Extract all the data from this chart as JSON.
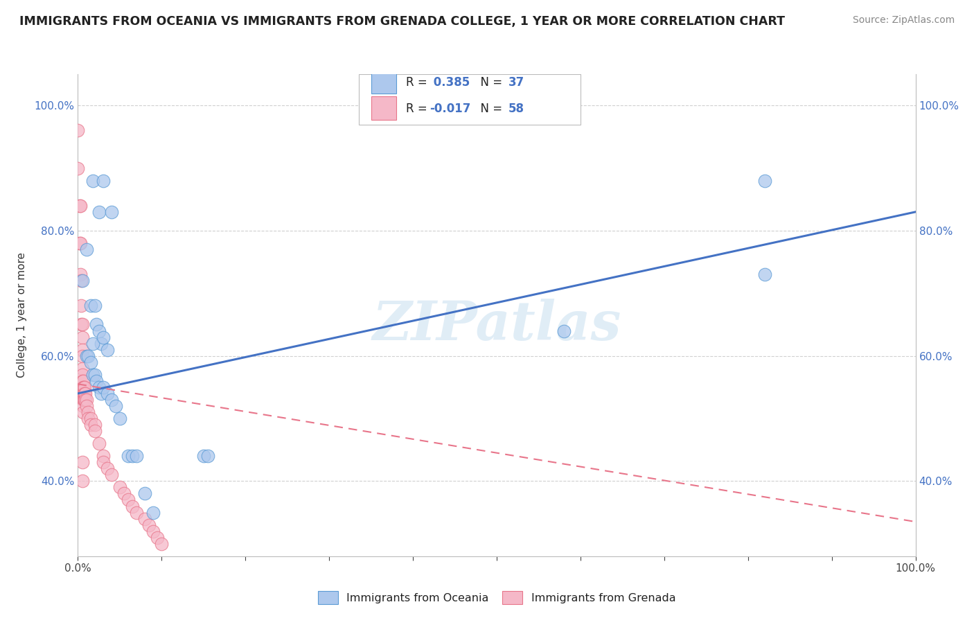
{
  "title": "IMMIGRANTS FROM OCEANIA VS IMMIGRANTS FROM GRENADA COLLEGE, 1 YEAR OR MORE CORRELATION CHART",
  "source": "Source: ZipAtlas.com",
  "ylabel": "College, 1 year or more",
  "blue_R": 0.385,
  "blue_N": 37,
  "pink_R": -0.017,
  "pink_N": 58,
  "blue_color": "#adc8ed",
  "pink_color": "#f5b8c8",
  "blue_edge_color": "#5b9bd5",
  "pink_edge_color": "#e8758a",
  "blue_line_color": "#4472c4",
  "pink_line_color": "#e8758a",
  "grid_color": "#d0d0d0",
  "watermark": "ZIPatlas",
  "legend_label_blue": "Immigrants from Oceania",
  "legend_label_pink": "Immigrants from Grenada",
  "xlim": [
    0.0,
    1.0
  ],
  "ylim": [
    0.28,
    1.05
  ],
  "yticks": [
    0.4,
    0.6,
    0.8,
    1.0
  ],
  "xtick_bottom": [
    0.0,
    1.0
  ],
  "blue_scatter": [
    [
      0.005,
      0.72
    ],
    [
      0.01,
      0.77
    ],
    [
      0.018,
      0.88
    ],
    [
      0.025,
      0.83
    ],
    [
      0.03,
      0.88
    ],
    [
      0.04,
      0.83
    ],
    [
      0.015,
      0.68
    ],
    [
      0.02,
      0.68
    ],
    [
      0.022,
      0.65
    ],
    [
      0.025,
      0.64
    ],
    [
      0.028,
      0.62
    ],
    [
      0.018,
      0.62
    ],
    [
      0.03,
      0.63
    ],
    [
      0.035,
      0.61
    ],
    [
      0.01,
      0.6
    ],
    [
      0.012,
      0.6
    ],
    [
      0.015,
      0.59
    ],
    [
      0.018,
      0.57
    ],
    [
      0.02,
      0.57
    ],
    [
      0.022,
      0.56
    ],
    [
      0.025,
      0.55
    ],
    [
      0.028,
      0.54
    ],
    [
      0.03,
      0.55
    ],
    [
      0.035,
      0.54
    ],
    [
      0.04,
      0.53
    ],
    [
      0.045,
      0.52
    ],
    [
      0.05,
      0.5
    ],
    [
      0.06,
      0.44
    ],
    [
      0.065,
      0.44
    ],
    [
      0.07,
      0.44
    ],
    [
      0.08,
      0.38
    ],
    [
      0.09,
      0.35
    ],
    [
      0.15,
      0.44
    ],
    [
      0.155,
      0.44
    ],
    [
      0.58,
      0.64
    ],
    [
      0.82,
      0.88
    ],
    [
      0.82,
      0.73
    ]
  ],
  "pink_scatter": [
    [
      0.0,
      0.96
    ],
    [
      0.0,
      0.9
    ],
    [
      0.002,
      0.84
    ],
    [
      0.002,
      0.78
    ],
    [
      0.003,
      0.84
    ],
    [
      0.003,
      0.78
    ],
    [
      0.003,
      0.73
    ],
    [
      0.004,
      0.72
    ],
    [
      0.004,
      0.68
    ],
    [
      0.004,
      0.65
    ],
    [
      0.005,
      0.65
    ],
    [
      0.005,
      0.63
    ],
    [
      0.005,
      0.61
    ],
    [
      0.005,
      0.6
    ],
    [
      0.005,
      0.58
    ],
    [
      0.005,
      0.57
    ],
    [
      0.005,
      0.56
    ],
    [
      0.005,
      0.55
    ],
    [
      0.005,
      0.54
    ],
    [
      0.006,
      0.56
    ],
    [
      0.006,
      0.55
    ],
    [
      0.006,
      0.54
    ],
    [
      0.006,
      0.53
    ],
    [
      0.006,
      0.52
    ],
    [
      0.006,
      0.51
    ],
    [
      0.007,
      0.55
    ],
    [
      0.007,
      0.54
    ],
    [
      0.007,
      0.53
    ],
    [
      0.008,
      0.55
    ],
    [
      0.008,
      0.54
    ],
    [
      0.008,
      0.53
    ],
    [
      0.009,
      0.54
    ],
    [
      0.009,
      0.53
    ],
    [
      0.01,
      0.53
    ],
    [
      0.01,
      0.52
    ],
    [
      0.012,
      0.51
    ],
    [
      0.012,
      0.5
    ],
    [
      0.015,
      0.5
    ],
    [
      0.015,
      0.49
    ],
    [
      0.02,
      0.49
    ],
    [
      0.02,
      0.48
    ],
    [
      0.025,
      0.46
    ],
    [
      0.03,
      0.44
    ],
    [
      0.03,
      0.43
    ],
    [
      0.035,
      0.42
    ],
    [
      0.04,
      0.41
    ],
    [
      0.05,
      0.39
    ],
    [
      0.055,
      0.38
    ],
    [
      0.06,
      0.37
    ],
    [
      0.065,
      0.36
    ],
    [
      0.07,
      0.35
    ],
    [
      0.08,
      0.34
    ],
    [
      0.085,
      0.33
    ],
    [
      0.09,
      0.32
    ],
    [
      0.095,
      0.31
    ],
    [
      0.1,
      0.3
    ],
    [
      0.005,
      0.43
    ],
    [
      0.005,
      0.4
    ]
  ],
  "blue_line": [
    [
      0.0,
      0.54
    ],
    [
      1.0,
      0.83
    ]
  ],
  "pink_line": [
    [
      0.0,
      0.555
    ],
    [
      1.0,
      0.335
    ]
  ]
}
